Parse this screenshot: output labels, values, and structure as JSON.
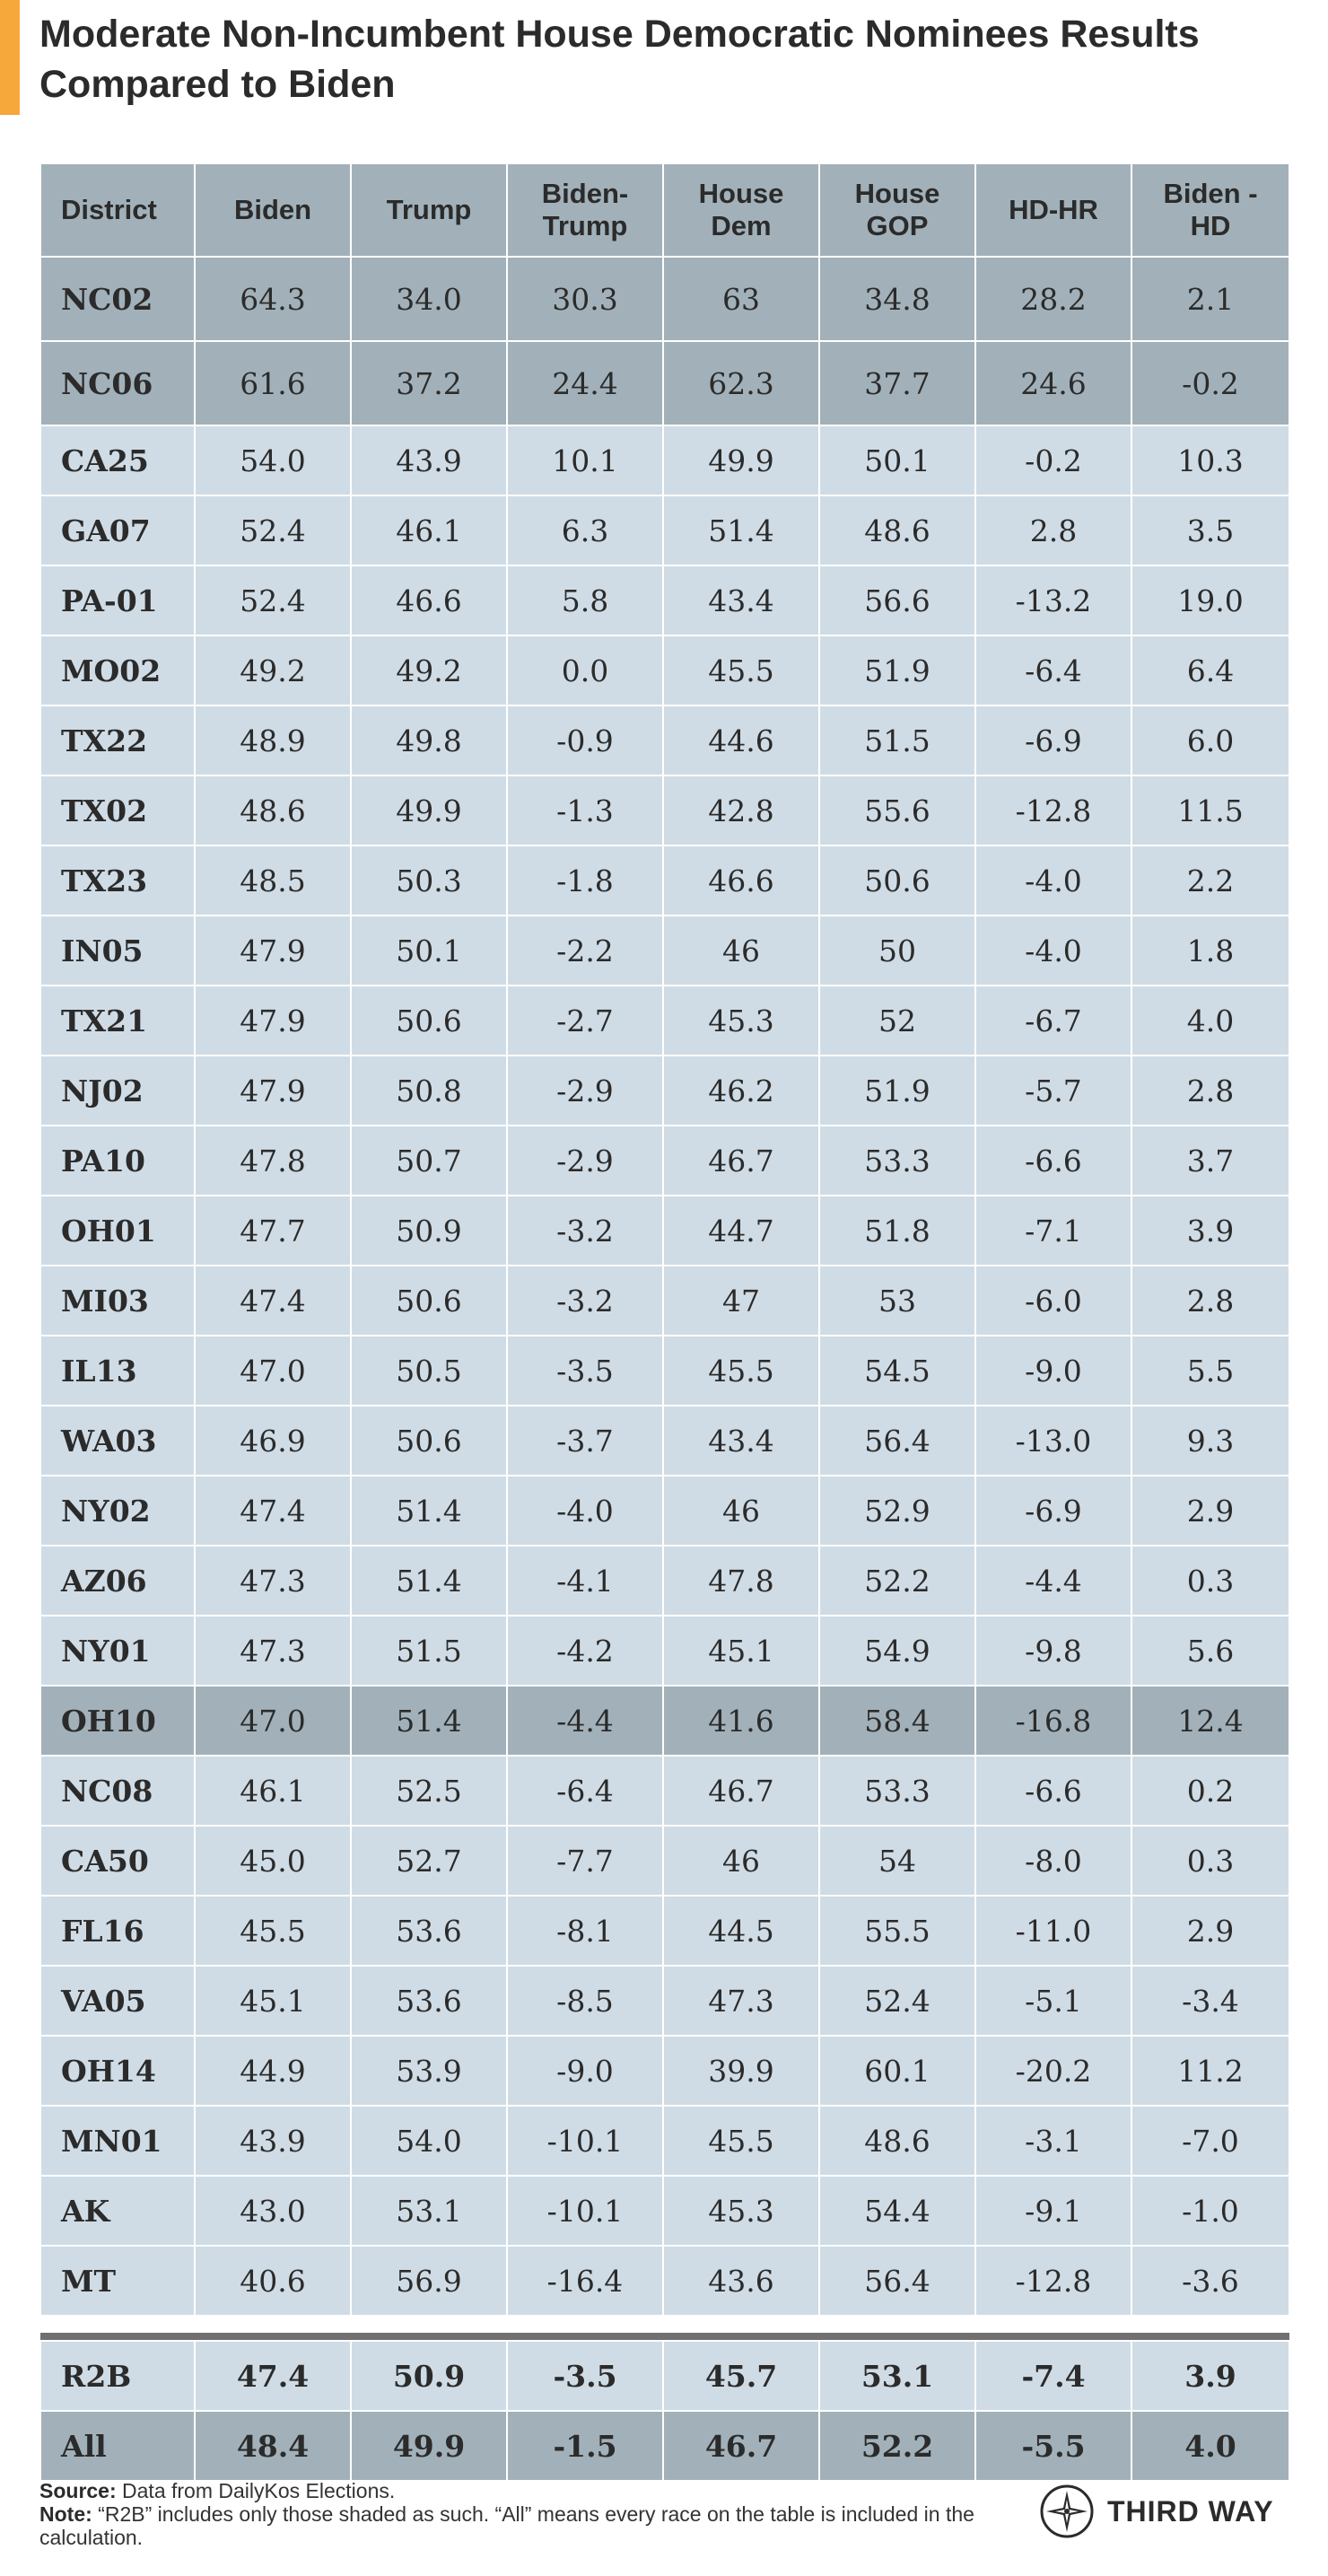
{
  "header": {
    "title": "Moderate Non-Incumbent House Democratic Nominees Results Compared to Biden"
  },
  "chart_data": {
    "type": "table",
    "title": "Moderate Non-Incumbent House Democratic Nominees Results Compared to Biden",
    "columns": [
      "District",
      "Biden",
      "Trump",
      "Biden-Trump",
      "House Dem",
      "House GOP",
      "HD-HR",
      "Biden - HD"
    ],
    "rows": [
      {
        "shaded": true,
        "cells": [
          "NC02",
          "64.3",
          "34.0",
          "30.3",
          "63",
          "34.8",
          "28.2",
          "2.1"
        ]
      },
      {
        "shaded": true,
        "cells": [
          "NC06",
          "61.6",
          "37.2",
          "24.4",
          "62.3",
          "37.7",
          "24.6",
          "-0.2"
        ]
      },
      {
        "shaded": false,
        "cells": [
          "CA25",
          "54.0",
          "43.9",
          "10.1",
          "49.9",
          "50.1",
          "-0.2",
          "10.3"
        ]
      },
      {
        "shaded": false,
        "cells": [
          "GA07",
          "52.4",
          "46.1",
          "6.3",
          "51.4",
          "48.6",
          "2.8",
          "3.5"
        ]
      },
      {
        "shaded": false,
        "cells": [
          "PA-01",
          "52.4",
          "46.6",
          "5.8",
          "43.4",
          "56.6",
          "-13.2",
          "19.0"
        ]
      },
      {
        "shaded": false,
        "cells": [
          "MO02",
          "49.2",
          "49.2",
          "0.0",
          "45.5",
          "51.9",
          "-6.4",
          "6.4"
        ]
      },
      {
        "shaded": false,
        "cells": [
          "TX22",
          "48.9",
          "49.8",
          "-0.9",
          "44.6",
          "51.5",
          "-6.9",
          "6.0"
        ]
      },
      {
        "shaded": false,
        "cells": [
          "TX02",
          "48.6",
          "49.9",
          "-1.3",
          "42.8",
          "55.6",
          "-12.8",
          "11.5"
        ]
      },
      {
        "shaded": false,
        "cells": [
          "TX23",
          "48.5",
          "50.3",
          "-1.8",
          "46.6",
          "50.6",
          "-4.0",
          "2.2"
        ]
      },
      {
        "shaded": false,
        "cells": [
          "IN05",
          "47.9",
          "50.1",
          "-2.2",
          "46",
          "50",
          "-4.0",
          "1.8"
        ]
      },
      {
        "shaded": false,
        "cells": [
          "TX21",
          "47.9",
          "50.6",
          "-2.7",
          "45.3",
          "52",
          "-6.7",
          "4.0"
        ]
      },
      {
        "shaded": false,
        "cells": [
          "NJ02",
          "47.9",
          "50.8",
          "-2.9",
          "46.2",
          "51.9",
          "-5.7",
          "2.8"
        ]
      },
      {
        "shaded": false,
        "cells": [
          "PA10",
          "47.8",
          "50.7",
          "-2.9",
          "46.7",
          "53.3",
          "-6.6",
          "3.7"
        ]
      },
      {
        "shaded": false,
        "cells": [
          "OH01",
          "47.7",
          "50.9",
          "-3.2",
          "44.7",
          "51.8",
          "-7.1",
          "3.9"
        ]
      },
      {
        "shaded": false,
        "cells": [
          "MI03",
          "47.4",
          "50.6",
          "-3.2",
          "47",
          "53",
          "-6.0",
          "2.8"
        ]
      },
      {
        "shaded": false,
        "cells": [
          "IL13",
          "47.0",
          "50.5",
          "-3.5",
          "45.5",
          "54.5",
          "-9.0",
          "5.5"
        ]
      },
      {
        "shaded": false,
        "cells": [
          "WA03",
          "46.9",
          "50.6",
          "-3.7",
          "43.4",
          "56.4",
          "-13.0",
          "9.3"
        ]
      },
      {
        "shaded": false,
        "cells": [
          "NY02",
          "47.4",
          "51.4",
          "-4.0",
          "46",
          "52.9",
          "-6.9",
          "2.9"
        ]
      },
      {
        "shaded": false,
        "cells": [
          "AZ06",
          "47.3",
          "51.4",
          "-4.1",
          "47.8",
          "52.2",
          "-4.4",
          "0.3"
        ]
      },
      {
        "shaded": false,
        "cells": [
          "NY01",
          "47.3",
          "51.5",
          "-4.2",
          "45.1",
          "54.9",
          "-9.8",
          "5.6"
        ]
      },
      {
        "shaded": true,
        "cells": [
          "OH10",
          "47.0",
          "51.4",
          "-4.4",
          "41.6",
          "58.4",
          "-16.8",
          "12.4"
        ]
      },
      {
        "shaded": false,
        "cells": [
          "NC08",
          "46.1",
          "52.5",
          "-6.4",
          "46.7",
          "53.3",
          "-6.6",
          "0.2"
        ]
      },
      {
        "shaded": false,
        "cells": [
          "CA50",
          "45.0",
          "52.7",
          "-7.7",
          "46",
          "54",
          "-8.0",
          "0.3"
        ]
      },
      {
        "shaded": false,
        "cells": [
          "FL16",
          "45.5",
          "53.6",
          "-8.1",
          "44.5",
          "55.5",
          "-11.0",
          "2.9"
        ]
      },
      {
        "shaded": false,
        "cells": [
          "VA05",
          "45.1",
          "53.6",
          "-8.5",
          "47.3",
          "52.4",
          "-5.1",
          "-3.4"
        ]
      },
      {
        "shaded": false,
        "cells": [
          "OH14",
          "44.9",
          "53.9",
          "-9.0",
          "39.9",
          "60.1",
          "-20.2",
          "11.2"
        ]
      },
      {
        "shaded": false,
        "cells": [
          "MN01",
          "43.9",
          "54.0",
          "-10.1",
          "45.5",
          "48.6",
          "-3.1",
          "-7.0"
        ]
      },
      {
        "shaded": false,
        "cells": [
          "AK",
          "43.0",
          "53.1",
          "-10.1",
          "45.3",
          "54.4",
          "-9.1",
          "-1.0"
        ]
      },
      {
        "shaded": false,
        "cells": [
          "MT",
          "40.6",
          "56.9",
          "-16.4",
          "43.6",
          "56.4",
          "-12.8",
          "-3.6"
        ]
      }
    ],
    "summary_rows": [
      {
        "key": "r2b",
        "cells": [
          "R2B",
          "47.4",
          "50.9",
          "-3.5",
          "45.7",
          "53.1",
          "-7.4",
          "3.9"
        ]
      },
      {
        "key": "all",
        "cells": [
          "All",
          "48.4",
          "49.9",
          "-1.5",
          "46.7",
          "52.2",
          "-5.5",
          "4.0"
        ]
      }
    ]
  },
  "footer": {
    "source_label": "Source:",
    "source_text": " Data from DailyKos Elections.",
    "note_label": "Note:",
    "note_text": " “R2B” includes only those shaded as such. “All” means every race on the table is included in the calculation.",
    "brand": "THIRD WAY",
    "brand_icon": "compass-star-icon"
  },
  "colors": {
    "accent": "#f7a83a",
    "header_bg": "#a2b1b9",
    "row_bg": "#d0dce5",
    "shaded_bg": "#a2b1b9",
    "divider": "#707070"
  }
}
